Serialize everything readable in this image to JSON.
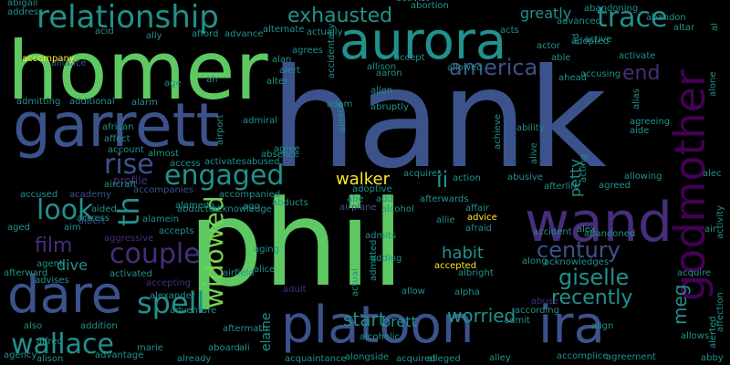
{
  "colors": {
    "background": "#000000",
    "green": "#5ec962",
    "teal": "#21918c",
    "blue": "#3b528b",
    "indigo": "#472d7b",
    "darkpurple": "#440154",
    "yellow": "#fde725",
    "lime": "#7ad151",
    "cyan": "#2c728e"
  },
  "words": [
    {
      "text": "hank",
      "color": "blue"
    },
    {
      "text": "phil",
      "color": "green"
    },
    {
      "text": "homer",
      "color": "green"
    },
    {
      "text": "aurora",
      "color": "teal"
    },
    {
      "text": "garrett",
      "color": "blue"
    },
    {
      "text": "platoon",
      "color": "blue"
    },
    {
      "text": "wand",
      "color": "indigo"
    },
    {
      "text": "ira",
      "color": "blue"
    },
    {
      "text": "dare",
      "color": "blue"
    },
    {
      "text": "godmother",
      "color": "darkpurple"
    },
    {
      "text": "relationship",
      "color": "teal"
    },
    {
      "text": "engaged",
      "color": "teal"
    },
    {
      "text": "trace",
      "color": "teal"
    },
    {
      "text": "couple",
      "color": "indigo"
    },
    {
      "text": "spell",
      "color": "teal"
    },
    {
      "text": "look",
      "color": "teal"
    },
    {
      "text": "wallace",
      "color": "teal"
    },
    {
      "text": "exhausted",
      "color": "teal"
    },
    {
      "text": "american",
      "color": "blue"
    },
    {
      "text": "century",
      "color": "blue"
    },
    {
      "text": "giselle",
      "color": "teal"
    },
    {
      "text": "rise",
      "color": "blue"
    },
    {
      "text": "widowed",
      "color": "lime"
    },
    {
      "text": "recently",
      "color": "teal"
    },
    {
      "text": "th",
      "color": "teal"
    },
    {
      "text": "film",
      "color": "indigo"
    },
    {
      "text": "end",
      "color": "indigo"
    },
    {
      "text": "habit",
      "color": "teal"
    },
    {
      "text": "worried",
      "color": "teal"
    },
    {
      "text": "start",
      "color": "teal"
    },
    {
      "text": "meg",
      "color": "teal"
    },
    {
      "text": "walker",
      "color": "yellow"
    },
    {
      "text": "ii",
      "color": "teal"
    },
    {
      "text": "brett",
      "color": "teal"
    },
    {
      "text": "greatly",
      "color": "teal"
    },
    {
      "text": "dive",
      "color": "teal"
    },
    {
      "text": "petty",
      "color": "teal"
    },
    {
      "text": "elaine",
      "color": "teal"
    },
    {
      "text": "profile",
      "color": "indigo"
    },
    {
      "text": "african",
      "color": "teal"
    },
    {
      "text": "affect",
      "color": "teal"
    },
    {
      "text": "aircraft",
      "color": "teal"
    },
    {
      "text": "accused",
      "color": "teal"
    },
    {
      "text": "academy",
      "color": "blue"
    },
    {
      "text": "actress",
      "color": "teal"
    },
    {
      "text": "albert",
      "color": "blue"
    },
    {
      "text": "aggressive",
      "color": "indigo"
    },
    {
      "text": "alameda",
      "color": "teal"
    },
    {
      "text": "adventure",
      "color": "teal"
    },
    {
      "text": "accompanied",
      "color": "teal"
    },
    {
      "text": "alcohol",
      "color": "teal"
    },
    {
      "text": "affair",
      "color": "teal"
    },
    {
      "text": "advice",
      "color": "yellow"
    },
    {
      "text": "alley",
      "color": "teal"
    },
    {
      "text": "abby",
      "color": "teal"
    },
    {
      "text": "accomplice",
      "color": "teal"
    },
    {
      "text": "agreement",
      "color": "teal"
    },
    {
      "text": "alice",
      "color": "teal"
    },
    {
      "text": "alex",
      "color": "teal"
    },
    {
      "text": "along",
      "color": "teal"
    },
    {
      "text": "albright",
      "color": "teal"
    },
    {
      "text": "accepted",
      "color": "yellow"
    },
    {
      "text": "alpha",
      "color": "teal"
    },
    {
      "text": "aging",
      "color": "teal"
    },
    {
      "text": "allen",
      "color": "teal"
    },
    {
      "text": "alert",
      "color": "teal"
    },
    {
      "text": "alan",
      "color": "teal"
    },
    {
      "text": "ali",
      "color": "teal"
    },
    {
      "text": "alison",
      "color": "teal"
    },
    {
      "text": "alfred",
      "color": "teal"
    },
    {
      "text": "already",
      "color": "teal"
    },
    {
      "text": "aboard",
      "color": "teal"
    },
    {
      "text": "marie",
      "color": "teal"
    },
    {
      "text": "alleged",
      "color": "teal"
    },
    {
      "text": "ad",
      "color": "teal"
    },
    {
      "text": "adopted",
      "color": "teal"
    },
    {
      "text": "allowing",
      "color": "teal"
    },
    {
      "text": "activity",
      "color": "teal"
    },
    {
      "text": "affection",
      "color": "teal"
    },
    {
      "text": "allows",
      "color": "teal"
    },
    {
      "text": "alone",
      "color": "teal"
    },
    {
      "text": "acquire",
      "color": "teal"
    },
    {
      "text": "air",
      "color": "teal"
    },
    {
      "text": "alec",
      "color": "teal"
    },
    {
      "text": "agreed",
      "color": "teal"
    },
    {
      "text": "afterlife",
      "color": "teal"
    },
    {
      "text": "acts",
      "color": "teal"
    },
    {
      "text": "acknowledges",
      "color": "teal"
    },
    {
      "text": "abandoned",
      "color": "teal"
    },
    {
      "text": "accident",
      "color": "teal"
    },
    {
      "text": "abusive",
      "color": "teal"
    },
    {
      "text": "acting",
      "color": "teal"
    },
    {
      "text": "ability",
      "color": "teal"
    },
    {
      "text": "agreeing",
      "color": "teal"
    },
    {
      "text": "aide",
      "color": "teal"
    },
    {
      "text": "alias",
      "color": "teal"
    },
    {
      "text": "ahead",
      "color": "teal"
    },
    {
      "text": "able",
      "color": "teal"
    },
    {
      "text": "accusing",
      "color": "teal"
    },
    {
      "text": "activate",
      "color": "teal"
    },
    {
      "text": "active",
      "color": "teal"
    },
    {
      "text": "abandoning",
      "color": "teal"
    },
    {
      "text": "abandon",
      "color": "teal"
    },
    {
      "text": "altar",
      "color": "teal"
    },
    {
      "text": "abigail",
      "color": "teal"
    },
    {
      "text": "address",
      "color": "teal"
    },
    {
      "text": "alliance",
      "color": "blue"
    },
    {
      "text": "acid",
      "color": "teal"
    },
    {
      "text": "accompany",
      "color": "yellow"
    },
    {
      "text": "ally",
      "color": "teal"
    },
    {
      "text": "afford",
      "color": "teal"
    },
    {
      "text": "advance",
      "color": "teal"
    },
    {
      "text": "alternate",
      "color": "teal"
    },
    {
      "text": "actually",
      "color": "teal"
    },
    {
      "text": "agrees",
      "color": "teal"
    },
    {
      "text": "abortion",
      "color": "teal"
    },
    {
      "text": "allowed",
      "color": "teal"
    },
    {
      "text": "advanced",
      "color": "teal"
    },
    {
      "text": "actor",
      "color": "teal"
    },
    {
      "text": "accept",
      "color": "teal"
    },
    {
      "text": "allison",
      "color": "teal"
    },
    {
      "text": "aaron",
      "color": "teal"
    },
    {
      "text": "abruptly",
      "color": "teal"
    },
    {
      "text": "accidentally",
      "color": "teal"
    },
    {
      "text": "adam",
      "color": "teal"
    },
    {
      "text": "ace",
      "color": "teal"
    },
    {
      "text": "aid",
      "color": "teal"
    },
    {
      "text": "alter",
      "color": "teal"
    },
    {
      "text": "agree",
      "color": "teal"
    },
    {
      "text": "age",
      "color": "teal"
    },
    {
      "text": "ah",
      "color": "teal"
    },
    {
      "text": "alarm",
      "color": "teal"
    },
    {
      "text": "additional",
      "color": "teal"
    },
    {
      "text": "admitting",
      "color": "teal"
    },
    {
      "text": "account",
      "color": "teal"
    },
    {
      "text": "almost",
      "color": "teal"
    },
    {
      "text": "access",
      "color": "teal"
    },
    {
      "text": "activates",
      "color": "teal"
    },
    {
      "text": "abused",
      "color": "teal"
    },
    {
      "text": "absence",
      "color": "teal"
    },
    {
      "text": "airport",
      "color": "teal"
    },
    {
      "text": "admiral",
      "color": "teal"
    },
    {
      "text": "aged",
      "color": "teal"
    },
    {
      "text": "accompanies",
      "color": "blue"
    },
    {
      "text": "abducted",
      "color": "teal"
    },
    {
      "text": "alamein",
      "color": "teal"
    },
    {
      "text": "accepts",
      "color": "teal"
    },
    {
      "text": "acknowledge",
      "color": "teal"
    },
    {
      "text": "ago",
      "color": "teal"
    },
    {
      "text": "abducts",
      "color": "teal"
    },
    {
      "text": "airplane",
      "color": "blue"
    },
    {
      "text": "adoptive",
      "color": "teal"
    },
    {
      "text": "add",
      "color": "teal"
    },
    {
      "text": "abe",
      "color": "teal"
    },
    {
      "text": "acquires",
      "color": "teal"
    },
    {
      "text": "action",
      "color": "teal"
    },
    {
      "text": "afterwards",
      "color": "teal"
    },
    {
      "text": "allie",
      "color": "teal"
    },
    {
      "text": "afraid",
      "color": "teal"
    },
    {
      "text": "admits",
      "color": "teal"
    },
    {
      "text": "adding",
      "color": "teal"
    },
    {
      "text": "airfield",
      "color": "teal"
    },
    {
      "text": "admitted",
      "color": "teal"
    },
    {
      "text": "activated",
      "color": "teal"
    },
    {
      "text": "accepting",
      "color": "indigo"
    },
    {
      "text": "alexander",
      "color": "teal"
    },
    {
      "text": "advises",
      "color": "teal"
    },
    {
      "text": "afterward",
      "color": "teal"
    },
    {
      "text": "agent",
      "color": "teal"
    },
    {
      "text": "adult",
      "color": "indigo"
    },
    {
      "text": "actual",
      "color": "teal"
    },
    {
      "text": "allow",
      "color": "teal"
    },
    {
      "text": "abuse",
      "color": "indigo"
    },
    {
      "text": "according",
      "color": "teal"
    },
    {
      "text": "admit",
      "color": "teal"
    },
    {
      "text": "align",
      "color": "teal"
    },
    {
      "text": "also",
      "color": "teal"
    },
    {
      "text": "addition",
      "color": "teal"
    },
    {
      "text": "aftermath",
      "color": "teal"
    },
    {
      "text": "alcoholic",
      "color": "teal"
    },
    {
      "text": "acquaintance",
      "color": "teal"
    },
    {
      "text": "alongside",
      "color": "teal"
    },
    {
      "text": "acquired",
      "color": "teal"
    },
    {
      "text": "achieve",
      "color": "teal"
    },
    {
      "text": "alive",
      "color": "teal"
    },
    {
      "text": "alerted",
      "color": "teal"
    },
    {
      "text": "agency",
      "color": "teal"
    },
    {
      "text": "advantage",
      "color": "teal"
    },
    {
      "text": "activist",
      "color": "teal"
    },
    {
      "text": "al",
      "color": "teal"
    },
    {
      "text": "aim",
      "color": "teal"
    },
    {
      "text": "aided",
      "color": "teal"
    },
    {
      "text": "addict",
      "color": "teal"
    }
  ]
}
